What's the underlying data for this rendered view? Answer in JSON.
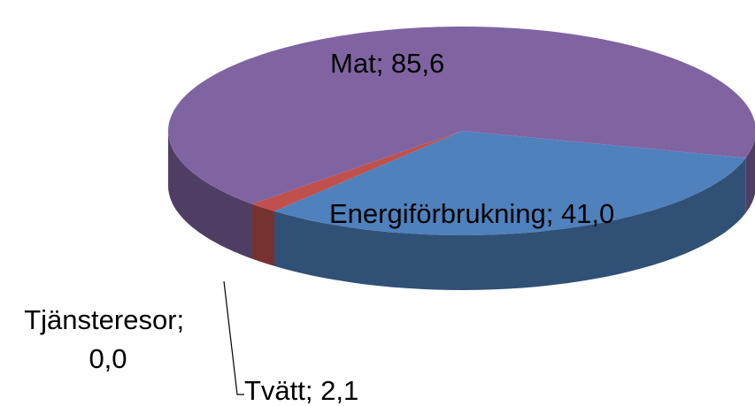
{
  "chart_data": {
    "type": "pie",
    "style": "3d",
    "categories": [
      "Energiförbrukning",
      "Tvätt",
      "Tjänsteresor",
      "Mat"
    ],
    "values": [
      41.0,
      2.1,
      0.0,
      85.6
    ],
    "value_labels": [
      "41,0",
      "2,1",
      "0,0",
      "85,6"
    ],
    "label_separator": "; ",
    "colors": [
      "#4f81bd",
      "#c0504d",
      "#9bbb59",
      "#8064a2"
    ]
  }
}
